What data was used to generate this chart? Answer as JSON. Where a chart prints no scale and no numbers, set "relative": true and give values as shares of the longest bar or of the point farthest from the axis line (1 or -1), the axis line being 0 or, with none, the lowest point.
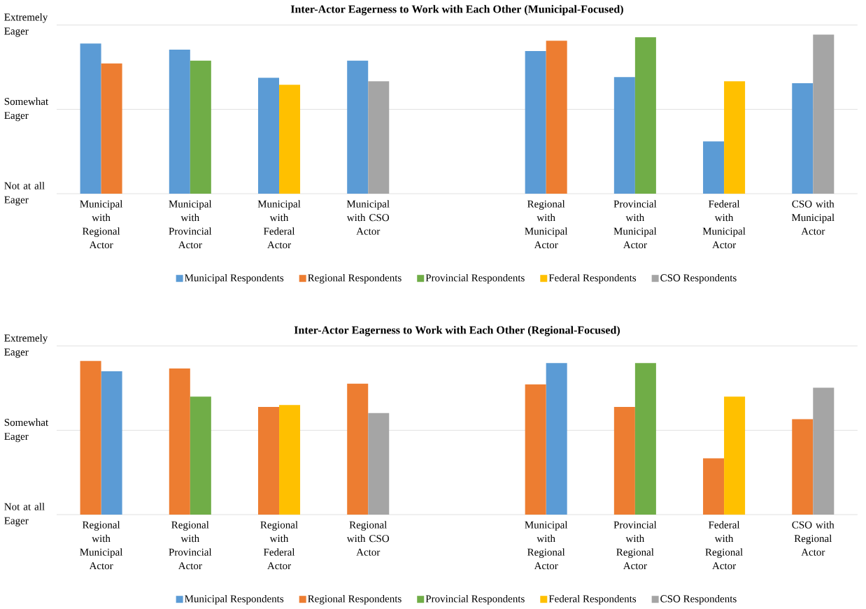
{
  "chart_data": [
    {
      "type": "bar",
      "title": "Inter-Actor Eagerness to Work with Each Other (Municipal-Focused)",
      "categories": [
        "Municipal with Regional Actor",
        "Municipal with Provincial Actor",
        "Municipal with Federal Actor",
        "Municipal with CSO Actor",
        null,
        "Regional with Municipal Actor",
        "Provincial with Municipal Actor",
        "Federal with Municipal Actor",
        "CSO with Municipal Actor"
      ],
      "relative": true,
      "series": [
        {
          "name": "Municipal Respondents",
          "color": "#5b9bd5",
          "values": [
            0.944,
            0.905,
            0.728,
            0.836,
            null,
            0.897,
            0.733,
            0.328,
            0.694
          ]
        },
        {
          "name": "Regional Respondents",
          "color": "#ed7d31",
          "values": [
            0.819,
            null,
            null,
            null,
            null,
            0.961,
            null,
            null,
            null
          ]
        },
        {
          "name": "Provincial Respondents",
          "color": "#70ad47",
          "values": [
            null,
            0.836,
            null,
            null,
            null,
            null,
            0.983,
            null,
            null
          ]
        },
        {
          "name": "Federal Respondents",
          "color": "#ffc000",
          "values": [
            null,
            null,
            0.685,
            null,
            null,
            null,
            null,
            0.707,
            null
          ]
        },
        {
          "name": "CSO Respondents",
          "color": "#a5a5a5",
          "values": [
            null,
            null,
            null,
            0.707,
            null,
            null,
            null,
            null,
            1.0
          ]
        }
      ],
      "annotations": [
        "Not at all Eager"
      ],
      "ref_lines": [
        {
          "axis": "y",
          "value": 0.53,
          "label": "Somewhat Eager",
          "color": "#d9d9d9"
        },
        {
          "axis": "y",
          "value": 1.06,
          "label": "Extremely Eager",
          "color": "#d9d9d9"
        }
      ],
      "legend": "bottom"
    },
    {
      "type": "bar",
      "title": "Inter-Actor Eagerness to Work with Each Other (Regional-Focused)",
      "categories": [
        "Regional with Municipal Actor",
        "Regional with Provincial Actor",
        "Regional with Federal Actor",
        "Regional with CSO Actor",
        null,
        "Municipal with Regional Actor",
        "Provincial with Regional Actor",
        "Federal with Regional Actor",
        "CSO with Regional Actor"
      ],
      "relative": true,
      "series": [
        {
          "name": "Municipal Respondents",
          "color": "#5b9bd5",
          "values": [
            0.933,
            null,
            null,
            null,
            null,
            0.987,
            null,
            null,
            null
          ]
        },
        {
          "name": "Regional Respondents",
          "color": "#ed7d31",
          "values": [
            1.0,
            0.951,
            0.701,
            0.853,
            null,
            0.848,
            0.701,
            0.366,
            0.621
          ]
        },
        {
          "name": "Provincial Respondents",
          "color": "#70ad47",
          "values": [
            null,
            0.768,
            null,
            null,
            null,
            null,
            0.987,
            null,
            null
          ]
        },
        {
          "name": "Federal Respondents",
          "color": "#ffc000",
          "values": [
            null,
            null,
            0.714,
            null,
            null,
            null,
            null,
            0.768,
            null
          ]
        },
        {
          "name": "CSO Respondents",
          "color": "#a5a5a5",
          "values": [
            null,
            null,
            null,
            0.661,
            null,
            null,
            null,
            null,
            0.826
          ]
        }
      ],
      "annotations": [
        "Not at all Eager"
      ],
      "ref_lines": [
        {
          "axis": "y",
          "value": 0.549,
          "label": "Somewhat Eager",
          "color": "#d9d9d9"
        },
        {
          "axis": "y",
          "value": 1.098,
          "label": "Extremely Eager",
          "color": "#d9d9d9"
        }
      ],
      "legend": "bottom"
    }
  ]
}
